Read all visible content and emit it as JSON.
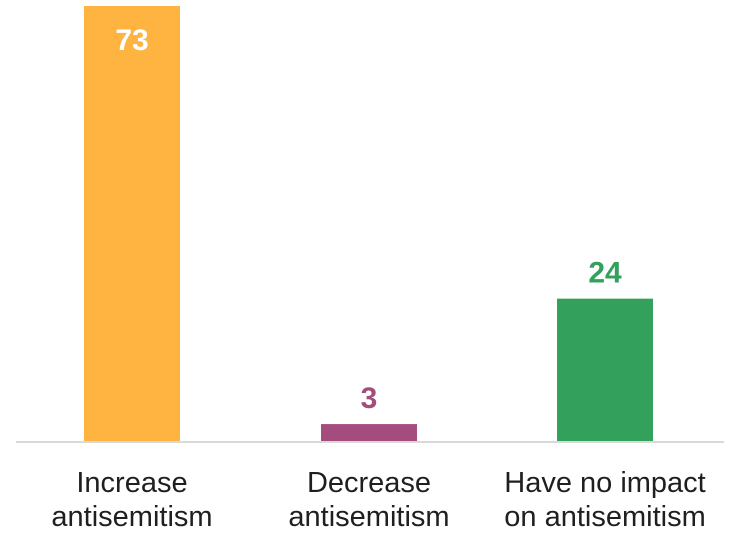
{
  "chart_data": {
    "type": "bar",
    "categories": [
      [
        "Increase",
        "antisemitism"
      ],
      [
        "Decrease",
        "antisemitism"
      ],
      [
        "Have no impact",
        "on antisemitism"
      ]
    ],
    "values": [
      73,
      3,
      24
    ],
    "value_labels": [
      "73",
      "3",
      "24"
    ],
    "colors": [
      "#FFB341",
      "#A44C7E",
      "#33A15C"
    ],
    "label_colors": [
      "#FFFFFF",
      "#A44C7E",
      "#33A15C"
    ],
    "label_position": [
      "inside-top",
      "above",
      "above"
    ],
    "ylim": [
      0,
      73
    ],
    "grid": false,
    "legend": "none",
    "title": "",
    "xlabel": "",
    "ylabel": ""
  }
}
